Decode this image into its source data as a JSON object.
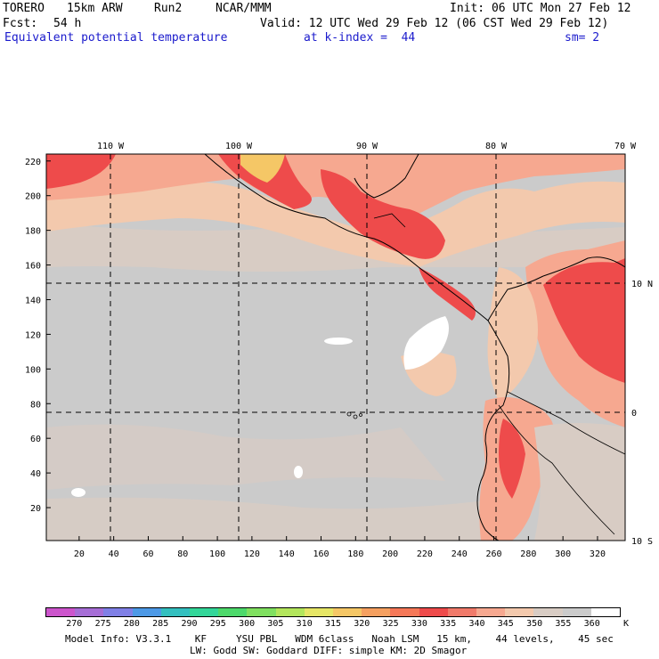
{
  "header": {
    "model": "TORERO",
    "resolution": "15km ARW",
    "run": "Run2",
    "org": "NCAR/MMM",
    "init": "Init: 06 UTC Mon 27 Feb 12",
    "fcst_label": "Fcst:",
    "fcst_value": "54 h",
    "valid": "Valid: 12 UTC Wed 29 Feb 12 (06 CST Wed 29 Feb 12)",
    "field": "Equivalent potential temperature",
    "level": "at k-index =  44",
    "smoothing": "sm= 2"
  },
  "map": {
    "lon_labels": [
      "110 W",
      "100 W",
      "90 W",
      "80 W",
      "70 W"
    ],
    "lat_labels": [
      "10 N",
      "0",
      "10 S"
    ],
    "y_ticks": [
      "220",
      "200",
      "180",
      "160",
      "140",
      "120",
      "100",
      "80",
      "60",
      "40",
      "20"
    ],
    "x_ticks": [
      "20",
      "40",
      "60",
      "80",
      "100",
      "120",
      "140",
      "160",
      "180",
      "200",
      "220",
      "240",
      "260",
      "280",
      "300",
      "320"
    ],
    "x_range": [
      1,
      336
    ],
    "y_range": [
      1,
      224
    ]
  },
  "colorbar": {
    "unit": "K",
    "levels": [
      "270",
      "275",
      "280",
      "285",
      "290",
      "295",
      "300",
      "305",
      "310",
      "315",
      "320",
      "325",
      "330",
      "335",
      "340",
      "345",
      "350",
      "355",
      "360"
    ],
    "colors": [
      "#cc55cc",
      "#a66ed6",
      "#8080e6",
      "#4d99e6",
      "#33bfbf",
      "#33d699",
      "#4dd96b",
      "#80e060",
      "#b3e65c",
      "#e6e666",
      "#f5c766",
      "#f5a060",
      "#f57858",
      "#ee4b4b",
      "#f07a6a",
      "#f6a890",
      "#f3c9ad",
      "#d8ccc4",
      "#cbcbcb",
      "#ffffff"
    ]
  },
  "footer": {
    "line1": "Model Info: V3.3.1    KF     YSU PBL   WDM 6class   Noah LSM   15 km,    44 levels,    45 sec",
    "line2": "LW: Godd SW: Goddard DIFF: simple KM: 2D Smagor"
  }
}
